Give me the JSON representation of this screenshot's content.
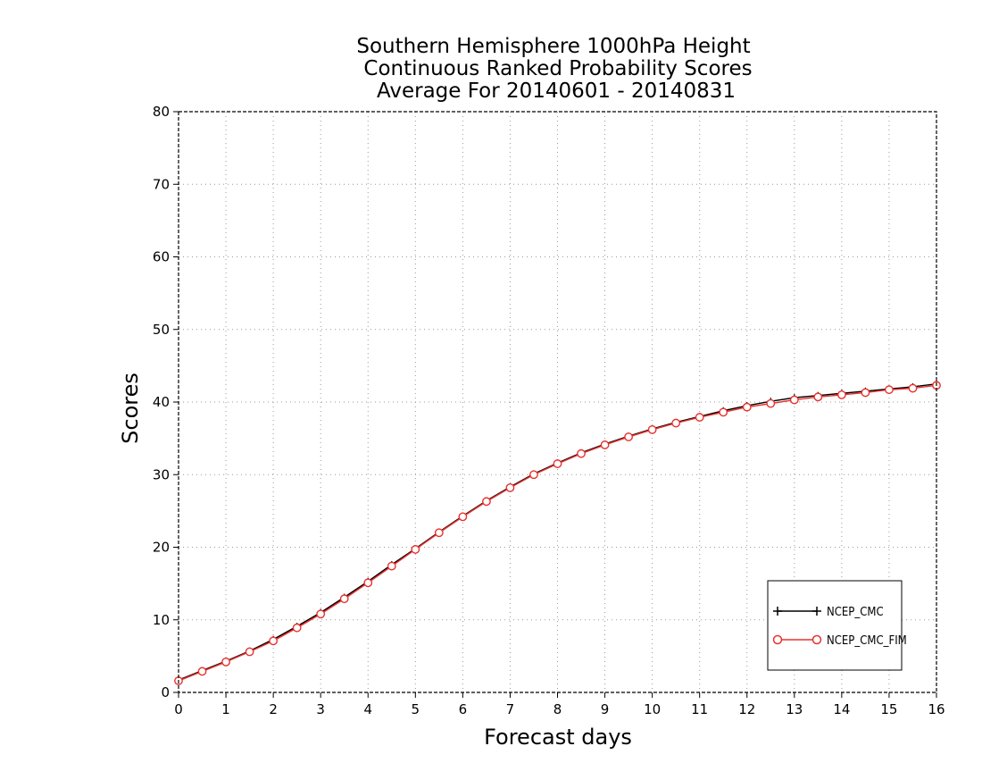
{
  "chart_data": {
    "type": "line",
    "title_lines": [
      "Southern Hemisphere 1000hPa Height",
      "Continuous Ranked Probability Scores",
      "Average For 20140601 - 20140831"
    ],
    "xlabel": "Forecast days",
    "ylabel": "Scores",
    "xlim": [
      0,
      16
    ],
    "ylim": [
      0,
      80
    ],
    "xticks": [
      0,
      1,
      2,
      3,
      4,
      5,
      6,
      7,
      8,
      9,
      10,
      11,
      12,
      13,
      14,
      15,
      16
    ],
    "yticks": [
      0,
      10,
      20,
      30,
      40,
      50,
      60,
      70,
      80
    ],
    "grid": true,
    "legend_position": "bottom-right",
    "x": [
      0,
      0.5,
      1,
      1.5,
      2,
      2.5,
      3,
      3.5,
      4,
      4.5,
      5,
      5.5,
      6,
      6.5,
      7,
      7.5,
      8,
      8.5,
      9,
      9.5,
      10,
      10.5,
      11,
      11.5,
      12,
      12.5,
      13,
      13.5,
      14,
      14.5,
      15,
      15.5,
      16
    ],
    "series": [
      {
        "name": "NCEP_CMC",
        "color": "#000000",
        "marker": "plus",
        "values": [
          1.7,
          3.0,
          4.3,
          5.7,
          7.3,
          9.1,
          11.0,
          13.1,
          15.3,
          17.6,
          19.8,
          22.1,
          24.3,
          26.4,
          28.3,
          30.1,
          31.6,
          33.0,
          34.2,
          35.3,
          36.3,
          37.2,
          38.0,
          38.8,
          39.5,
          40.1,
          40.6,
          40.9,
          41.2,
          41.5,
          41.8,
          42.1,
          42.5
        ]
      },
      {
        "name": "NCEP_CMC_FIM",
        "color": "#e8322e",
        "marker": "circle",
        "values": [
          1.6,
          2.9,
          4.2,
          5.6,
          7.1,
          8.9,
          10.8,
          12.9,
          15.1,
          17.4,
          19.7,
          22.0,
          24.2,
          26.3,
          28.2,
          30.0,
          31.5,
          32.9,
          34.1,
          35.2,
          36.2,
          37.1,
          37.9,
          38.6,
          39.3,
          39.8,
          40.3,
          40.7,
          41.0,
          41.3,
          41.7,
          41.9,
          42.3
        ]
      }
    ]
  }
}
